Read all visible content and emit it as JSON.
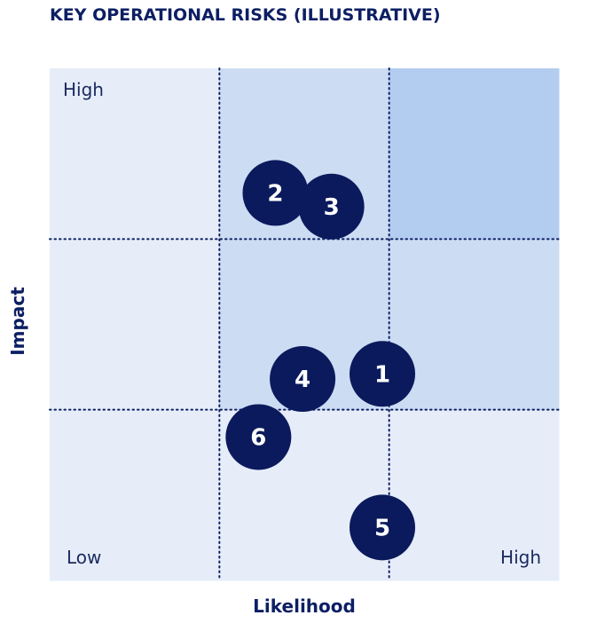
{
  "title": "KEY OPERATIONAL RISKS (ILLUSTRATIVE)",
  "chart_data": {
    "type": "scatter",
    "title": "KEY OPERATIONAL RISKS (ILLUSTRATIVE)",
    "xlabel": "Likelihood",
    "ylabel": "Impact",
    "xlim": [
      0,
      3
    ],
    "ylim": [
      0,
      3
    ],
    "grid": "3x3 dotted",
    "corner_labels": {
      "y_high": "High",
      "low": "Low",
      "x_high": "High"
    },
    "zone_colors": [
      "#e6edf9",
      "#ccdcf3",
      "#b3cdf0"
    ],
    "zones": [
      [
        0,
        0,
        0
      ],
      [
        0,
        1,
        1
      ],
      [
        0,
        1,
        2
      ]
    ],
    "bubble_color": "#0b1a5c",
    "points": [
      {
        "label": "1",
        "x": 1.96,
        "y": 1.21
      },
      {
        "label": "2",
        "x": 1.33,
        "y": 2.27
      },
      {
        "label": "3",
        "x": 1.66,
        "y": 2.19
      },
      {
        "label": "4",
        "x": 1.49,
        "y": 1.18
      },
      {
        "label": "5",
        "x": 1.96,
        "y": 0.31
      },
      {
        "label": "6",
        "x": 1.23,
        "y": 0.84
      }
    ]
  }
}
